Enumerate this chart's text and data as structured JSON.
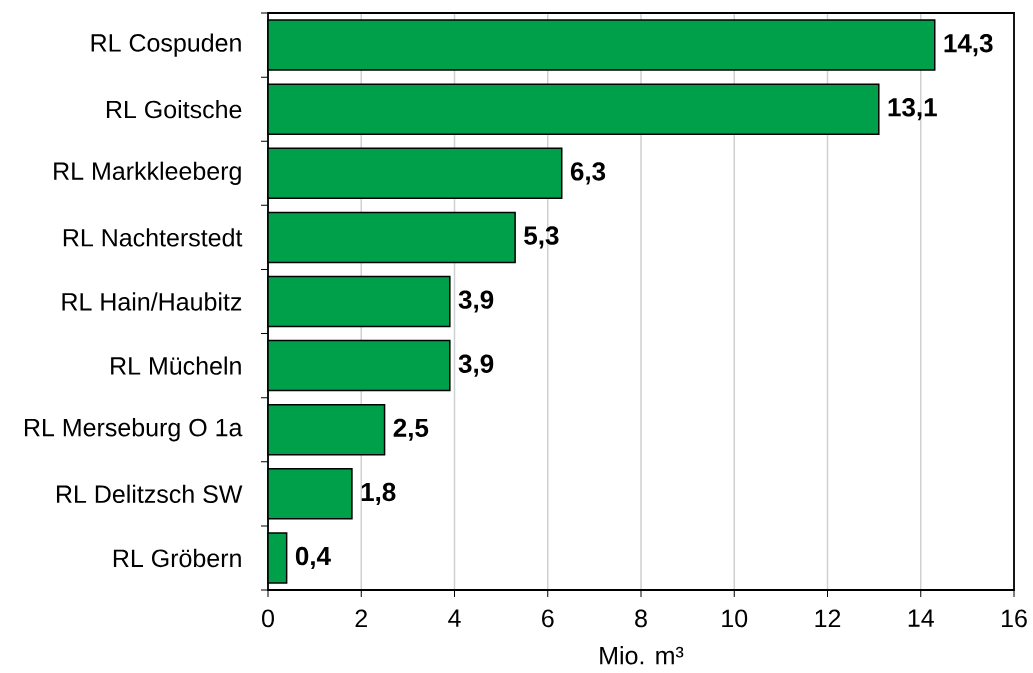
{
  "chart_data": {
    "type": "bar",
    "orientation": "horizontal",
    "categories": [
      "RL Cospuden",
      "RL Goitsche",
      "RL Markkleeberg",
      "RL Nachterstedt",
      "RL Hain/Haubitz",
      "RL Mücheln",
      "RL Merseburg O 1a",
      "RL Delitzsch SW",
      "RL Gröbern"
    ],
    "values": [
      14.3,
      13.1,
      6.3,
      5.3,
      3.9,
      3.9,
      2.5,
      1.8,
      0.4
    ],
    "value_labels": [
      "14,3",
      "13,1",
      "6,3",
      "5,3",
      "3,9",
      "3,9",
      "2,5",
      "1,8",
      "0,4"
    ],
    "color": "#00a04b",
    "xlabel": "Mio. m³",
    "xlim": [
      0,
      16
    ],
    "xticks": [
      0,
      2,
      4,
      6,
      8,
      10,
      12,
      14,
      16
    ],
    "grid": "x"
  }
}
